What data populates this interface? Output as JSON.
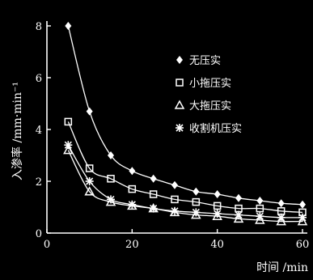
{
  "chart_data": {
    "type": "scatter",
    "xlabel": "时间 /min",
    "ylabel": "入渗率 /mm·min⁻¹",
    "xlim": [
      0,
      60
    ],
    "ylim": [
      0,
      8
    ],
    "xticks": [
      "0",
      "20",
      "40",
      "60"
    ],
    "yticks": [
      "0",
      "2",
      "4",
      "6",
      "8"
    ],
    "grid": false,
    "legend_position": "top-right",
    "colors": {
      "background": "#000000",
      "foreground": "#ffffff"
    },
    "series": [
      {
        "name": "无压实",
        "marker": "diamond",
        "x": [
          5,
          10,
          15,
          20,
          25,
          30,
          35,
          40,
          45,
          50,
          55,
          60
        ],
        "y": [
          8.0,
          4.7,
          3.0,
          2.4,
          2.1,
          1.85,
          1.6,
          1.5,
          1.35,
          1.25,
          1.15,
          1.1
        ]
      },
      {
        "name": "小拖压实",
        "marker": "square",
        "x": [
          5,
          10,
          15,
          20,
          25,
          30,
          35,
          40,
          45,
          50,
          55,
          60
        ],
        "y": [
          4.3,
          2.5,
          2.1,
          1.7,
          1.5,
          1.3,
          1.2,
          1.05,
          0.95,
          0.95,
          0.85,
          0.8
        ]
      },
      {
        "name": "大拖压实",
        "marker": "triangle",
        "x": [
          5,
          10,
          15,
          20,
          25,
          30,
          35,
          40,
          45,
          50,
          55,
          60
        ],
        "y": [
          3.2,
          1.6,
          1.2,
          1.05,
          0.95,
          0.8,
          0.7,
          0.65,
          0.55,
          0.5,
          0.45,
          0.45
        ]
      },
      {
        "name": "收割机压实",
        "marker": "asterisk",
        "x": [
          5,
          10,
          15,
          20,
          25,
          30,
          35,
          40,
          45,
          50,
          55,
          60
        ],
        "y": [
          3.4,
          2.0,
          1.3,
          1.1,
          0.95,
          0.85,
          0.8,
          0.75,
          0.7,
          0.65,
          0.6,
          0.6
        ]
      }
    ]
  }
}
